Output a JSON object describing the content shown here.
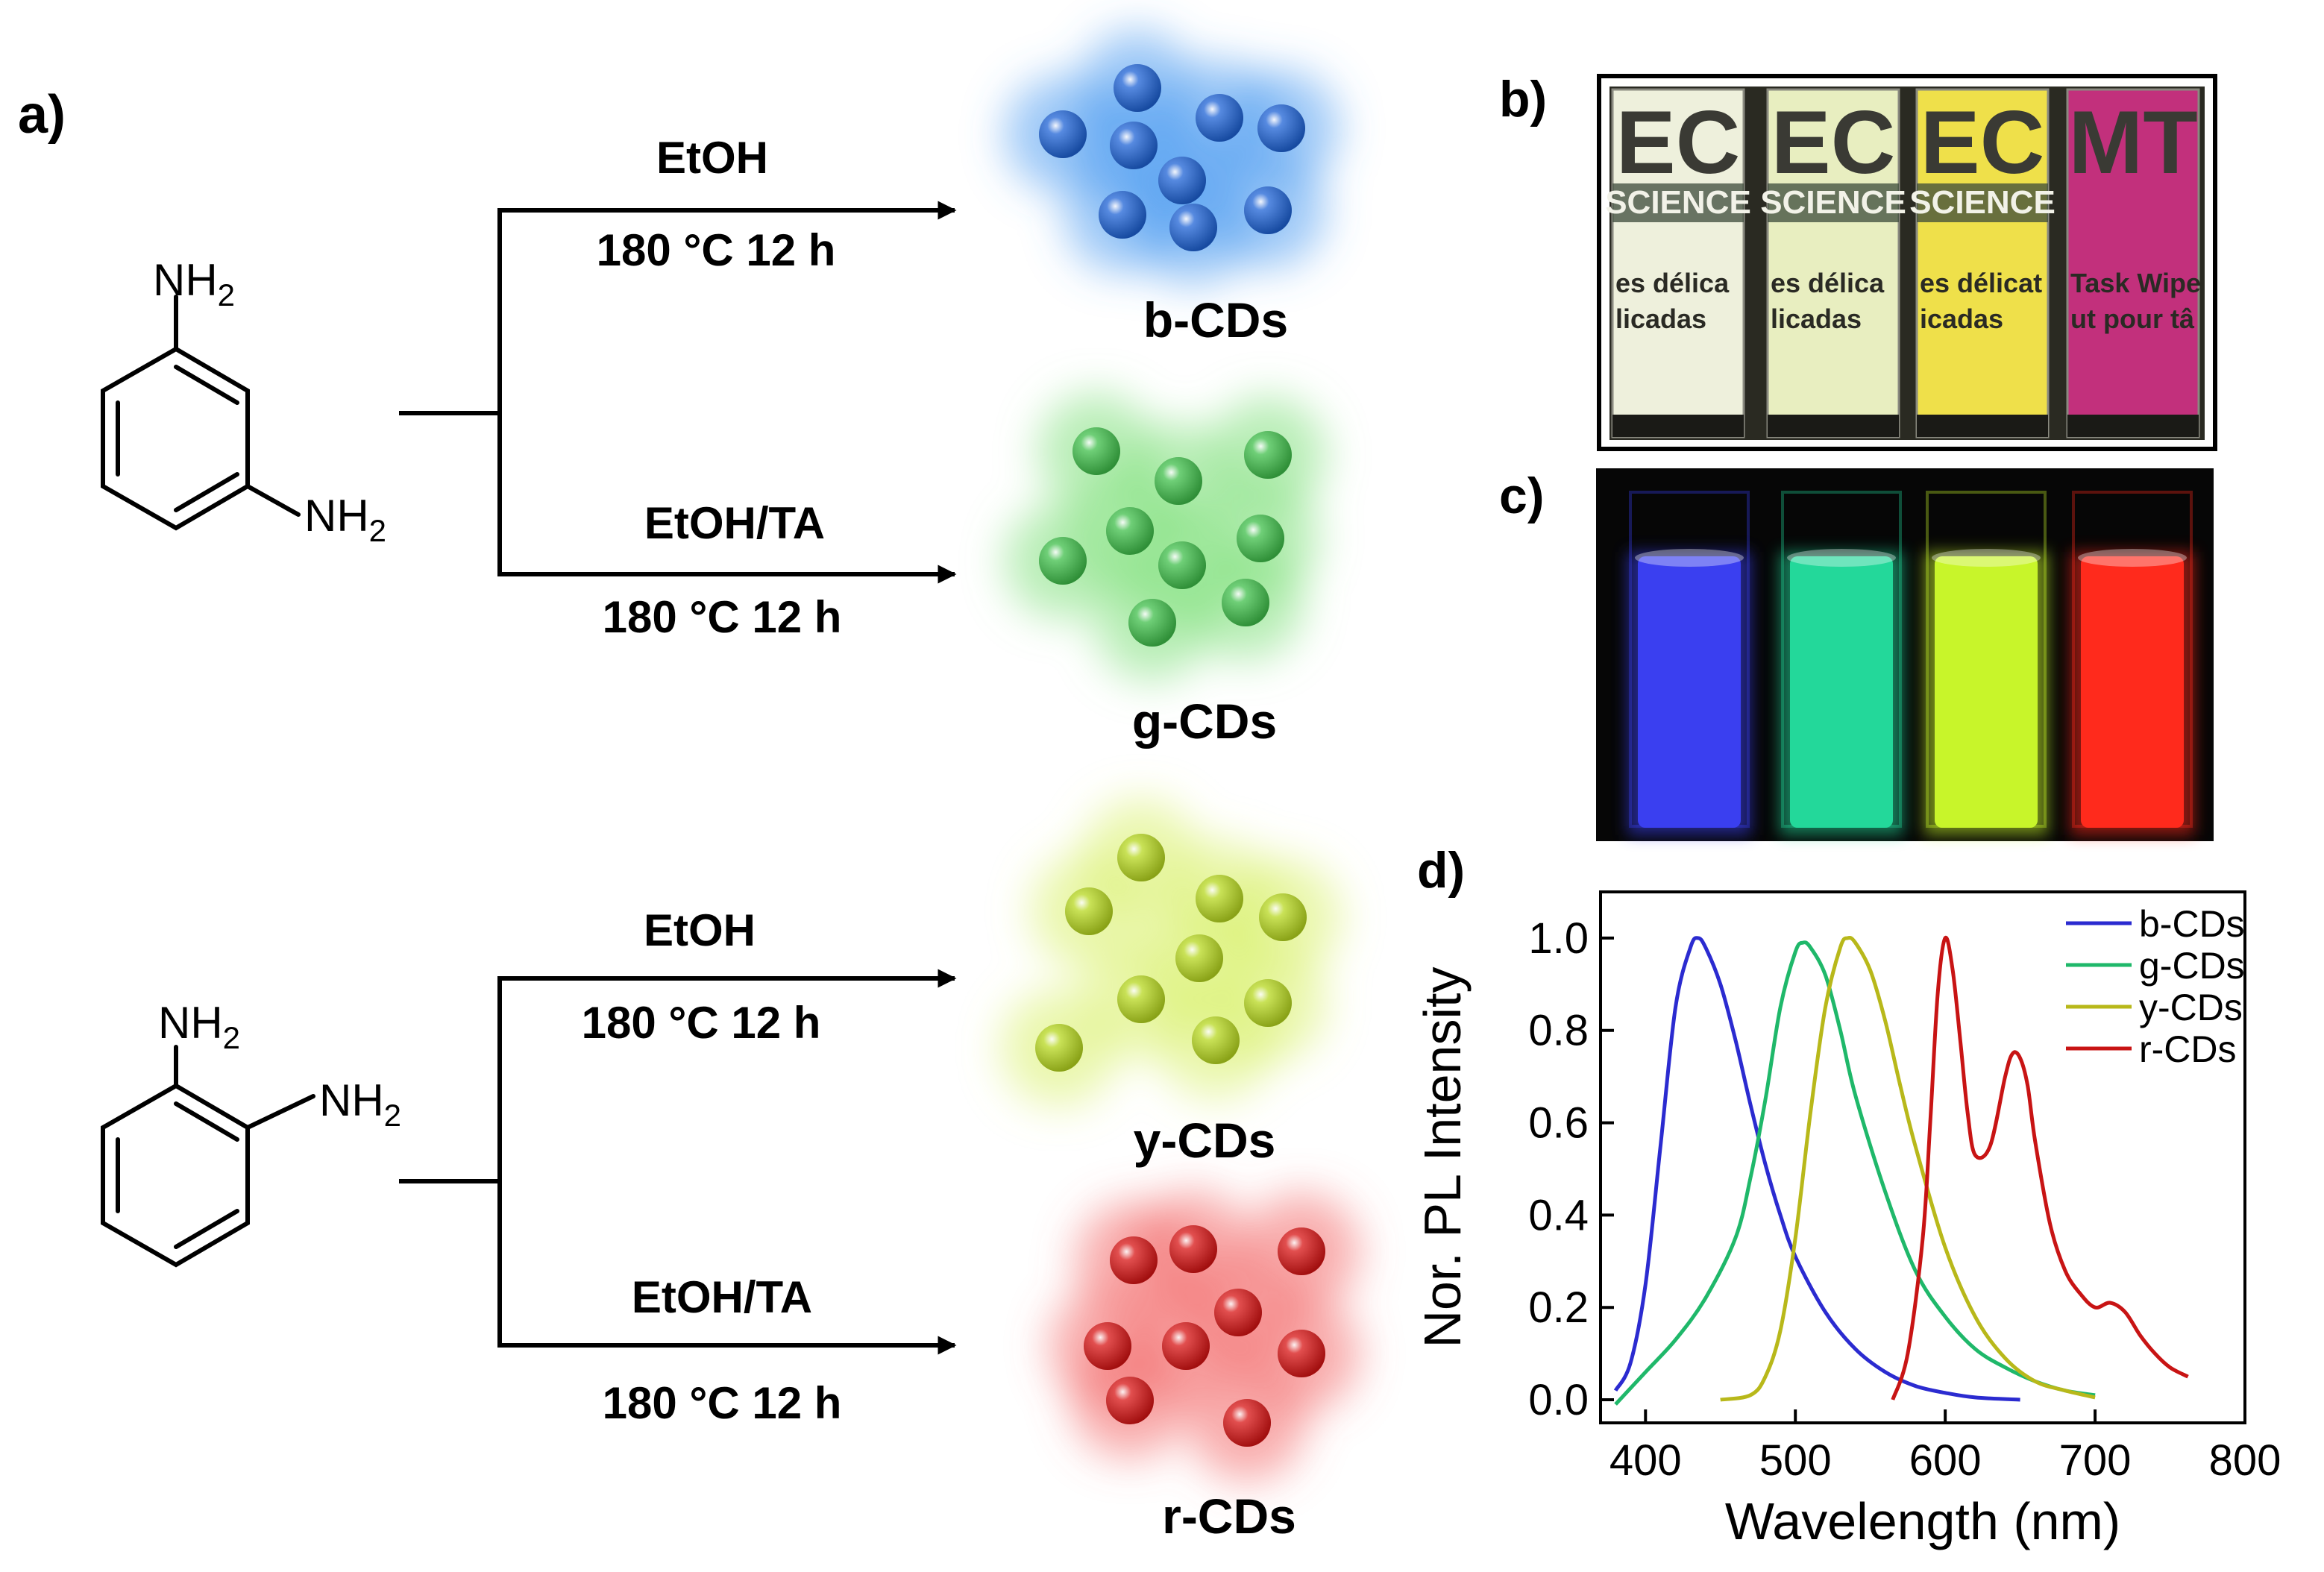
{
  "panel_labels": {
    "a": "a)",
    "b": "b)",
    "c": "c)",
    "d": "d)"
  },
  "reactants": {
    "meta": {
      "group1": "NH",
      "group2": "NH",
      "subscript": "2"
    },
    "ortho": {
      "group1": "NH",
      "group2": "NH",
      "subscript": "2"
    }
  },
  "reactions": [
    {
      "solvent": "EtOH",
      "conditions": "180 °C 12 h",
      "product": "b-CDs",
      "color": "#1e63d6",
      "glow": "#4f9cf0"
    },
    {
      "solvent": "EtOH/TA",
      "conditions": "180 °C 12 h",
      "product": "g-CDs",
      "color": "#3fbf4a",
      "glow": "#7fe07c"
    },
    {
      "solvent": "EtOH",
      "conditions": "180 °C 12 h",
      "product": "y-CDs",
      "color": "#b7d81f",
      "glow": "#d9f06a"
    },
    {
      "solvent": "EtOH/TA",
      "conditions": "180 °C 12 h",
      "product": "r-CDs",
      "color": "#d81414",
      "glow": "#f26a6a"
    }
  ],
  "photo_daylight": {
    "vials": [
      {
        "top": "EC",
        "banner": "SCIENCE",
        "line1": "es délica",
        "line2": "licadas",
        "tint": "#eef0dc"
      },
      {
        "top": "EC",
        "banner": "SCIENCE",
        "line1": "es délica",
        "line2": "licadas",
        "tint": "#e8eec0"
      },
      {
        "top": "EC",
        "banner": "SCIENCE",
        "line1": "es délicat",
        "line2": "icadas",
        "tint": "#efe04a"
      },
      {
        "top": "MT",
        "banner": "",
        "line1": "Task Wipe",
        "line2": "ut pour tâ",
        "tint": "#c2307c"
      }
    ]
  },
  "photo_uv": {
    "vials": [
      {
        "glow": "#3a3ff0"
      },
      {
        "glow": "#23d89a"
      },
      {
        "glow": "#c8f52a"
      },
      {
        "glow": "#ff2a1c"
      }
    ]
  },
  "chart_data": {
    "type": "line",
    "xlabel": "Wavelength (nm)",
    "ylabel": "Nor. PL Intensity",
    "xlim": [
      370,
      800
    ],
    "ylim": [
      -0.05,
      1.1
    ],
    "xticks": [
      400,
      500,
      600,
      700,
      800
    ],
    "yticks": [
      0.0,
      0.2,
      0.4,
      0.6,
      0.8,
      1.0
    ],
    "xtick_labels": [
      "400",
      "500",
      "600",
      "700",
      "800"
    ],
    "ytick_labels": [
      "0.0",
      "0.2",
      "0.4",
      "0.6",
      "0.8",
      "1.0"
    ],
    "legend_position": "top-right",
    "series": [
      {
        "name": "b-CDs",
        "color": "#2b2bd0",
        "x": [
          380,
          390,
          400,
          410,
          420,
          430,
          435,
          440,
          450,
          460,
          470,
          480,
          490,
          500,
          520,
          540,
          560,
          580,
          600,
          620,
          650
        ],
        "y": [
          0.02,
          0.08,
          0.25,
          0.55,
          0.85,
          0.98,
          1.0,
          0.98,
          0.9,
          0.78,
          0.64,
          0.51,
          0.4,
          0.31,
          0.19,
          0.11,
          0.06,
          0.03,
          0.015,
          0.005,
          0.0
        ]
      },
      {
        "name": "g-CDs",
        "color": "#1fb86a",
        "x": [
          380,
          400,
          420,
          440,
          460,
          470,
          480,
          490,
          500,
          505,
          510,
          520,
          530,
          540,
          560,
          580,
          600,
          620,
          640,
          660,
          680,
          700
        ],
        "y": [
          -0.01,
          0.06,
          0.13,
          0.22,
          0.35,
          0.48,
          0.65,
          0.85,
          0.97,
          0.99,
          0.98,
          0.92,
          0.8,
          0.66,
          0.45,
          0.28,
          0.18,
          0.11,
          0.07,
          0.04,
          0.02,
          0.01
        ]
      },
      {
        "name": "y-CDs",
        "color": "#b8b81a",
        "x": [
          450,
          470,
          480,
          490,
          500,
          510,
          520,
          530,
          535,
          540,
          550,
          560,
          570,
          580,
          600,
          620,
          640,
          660,
          680,
          700
        ],
        "y": [
          0.0,
          0.01,
          0.05,
          0.15,
          0.35,
          0.62,
          0.85,
          0.98,
          1.0,
          0.99,
          0.93,
          0.82,
          0.68,
          0.55,
          0.33,
          0.18,
          0.09,
          0.04,
          0.02,
          0.005
        ]
      },
      {
        "name": "r-CDs",
        "color": "#c81414",
        "x": [
          565,
          575,
          585,
          590,
          595,
          600,
          605,
          610,
          615,
          620,
          630,
          640,
          645,
          650,
          655,
          660,
          670,
          680,
          690,
          700,
          710,
          720,
          730,
          740,
          750,
          762
        ],
        "y": [
          0.0,
          0.1,
          0.35,
          0.6,
          0.88,
          1.0,
          0.93,
          0.78,
          0.62,
          0.53,
          0.55,
          0.7,
          0.75,
          0.74,
          0.68,
          0.56,
          0.38,
          0.28,
          0.23,
          0.2,
          0.21,
          0.19,
          0.14,
          0.1,
          0.07,
          0.05
        ]
      }
    ]
  }
}
